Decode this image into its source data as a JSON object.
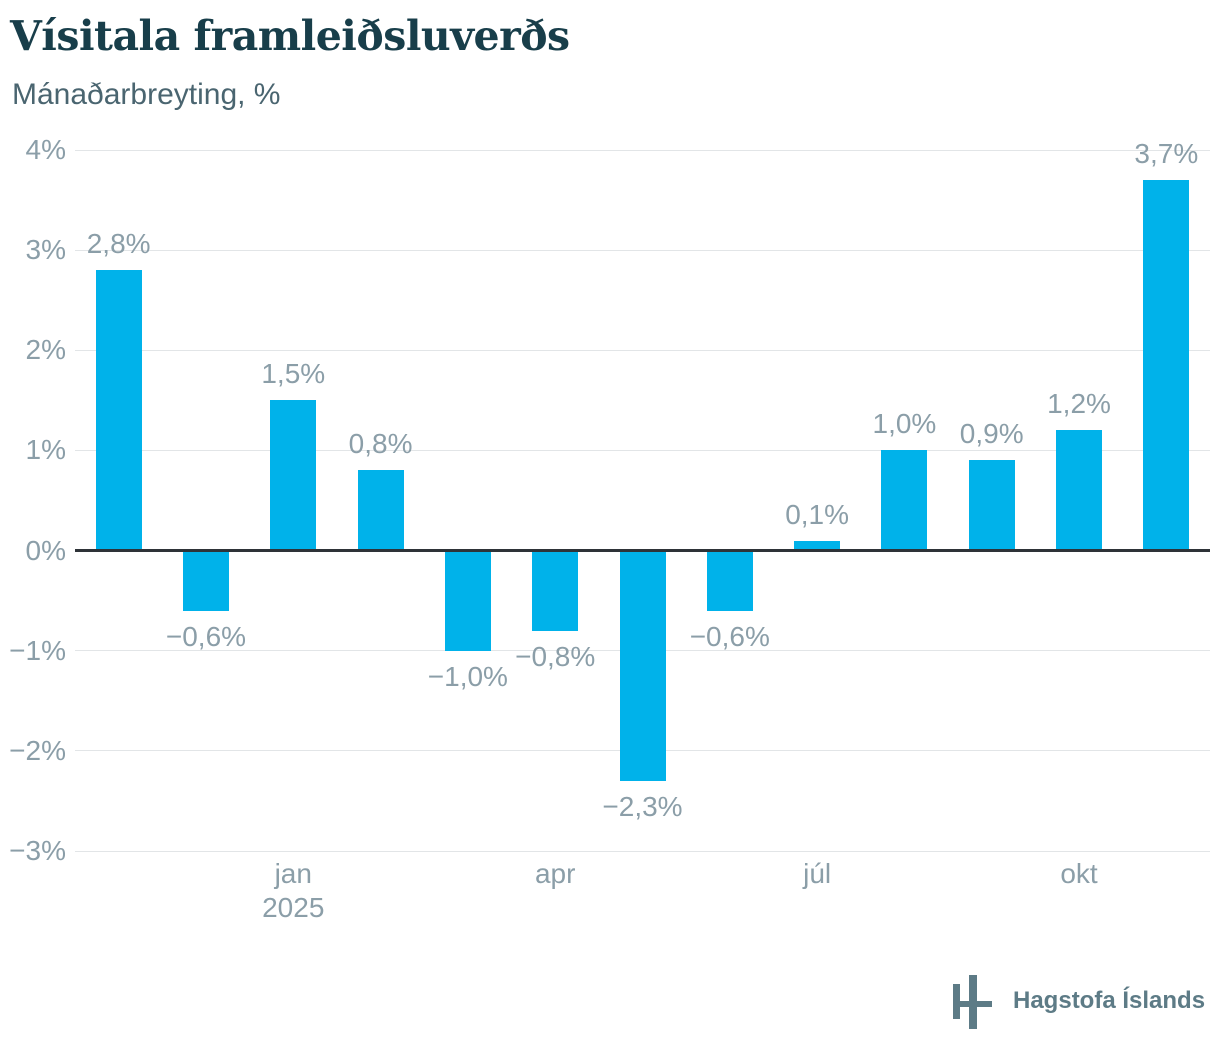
{
  "page": {
    "title": "Vísitala framleiðsluverðs",
    "subtitle": "Mánaðarbreyting, %"
  },
  "footer": {
    "brand": "Hagstofa Íslands"
  },
  "chart_data": {
    "type": "bar",
    "title": "Vísitala framleiðsluverðs",
    "subtitle": "Mánaðarbreyting, %",
    "unit": "%",
    "values": [
      2.8,
      -0.6,
      1.5,
      0.8,
      -1.0,
      -0.8,
      -2.3,
      -0.6,
      0.1,
      1.0,
      0.9,
      1.2,
      3.7
    ],
    "value_labels": [
      "2,8%",
      "−0,6%",
      "1,5%",
      "0,8%",
      "−1,0%",
      "−0,8%",
      "−2,3%",
      "−0,6%",
      "0,1%",
      "1,0%",
      "0,9%",
      "1,2%",
      "3,7%"
    ],
    "x_ticks": [
      {
        "band": 2,
        "label": "jan",
        "year": "2025"
      },
      {
        "band": 5,
        "label": "apr"
      },
      {
        "band": 8,
        "label": "júl"
      },
      {
        "band": 11,
        "label": "okt"
      }
    ],
    "y_ticks": [
      {
        "v": 4,
        "label": "4%"
      },
      {
        "v": 3,
        "label": "3%"
      },
      {
        "v": 2,
        "label": "2%"
      },
      {
        "v": 1,
        "label": "1%"
      },
      {
        "v": 0,
        "label": "0%"
      },
      {
        "v": -1,
        "label": "−1%"
      },
      {
        "v": -2,
        "label": "−2%"
      },
      {
        "v": -3,
        "label": "−3%"
      }
    ],
    "ylim": [
      -3,
      4
    ],
    "grid": true,
    "legend": "none",
    "colors": {
      "bar": "#00b2ea",
      "title": "#183e4a",
      "subtitle": "#4a6570",
      "label": "#8b9ea8",
      "grid": "#e2e5e7",
      "zero_line": "#2e3338",
      "brand": "#5d7b86"
    }
  }
}
